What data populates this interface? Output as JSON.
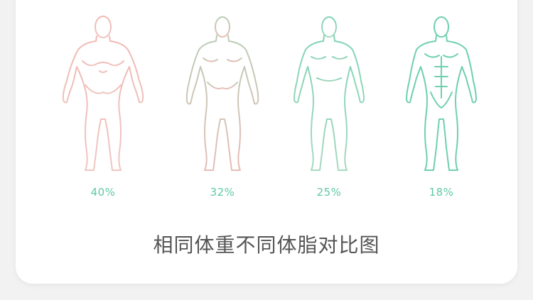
{
  "figures": [
    {
      "label": "40%",
      "body_fat": 40,
      "stroke_top": "#f0b9b4",
      "stroke_bottom": "#f0c6c0",
      "icon": "obese-body-icon"
    },
    {
      "label": "32%",
      "body_fat": 32,
      "stroke_top": "#b9cdb5",
      "stroke_bottom": "#e6bdb5",
      "icon": "overweight-body-icon"
    },
    {
      "label": "25%",
      "body_fat": 25,
      "stroke_top": "#7fd3b4",
      "stroke_bottom": "#a6d9c0",
      "icon": "average-body-icon"
    },
    {
      "label": "18%",
      "body_fat": 18,
      "stroke_top": "#6fd0ad",
      "stroke_bottom": "#6fd0ad",
      "icon": "athletic-body-icon"
    }
  ],
  "caption": "相同体重不同体脂对比图",
  "colors": {
    "percent_text": "#5fc9a6",
    "caption_text": "#555555",
    "card_bg": "#ffffff",
    "page_bg": "#f2f2f2"
  }
}
